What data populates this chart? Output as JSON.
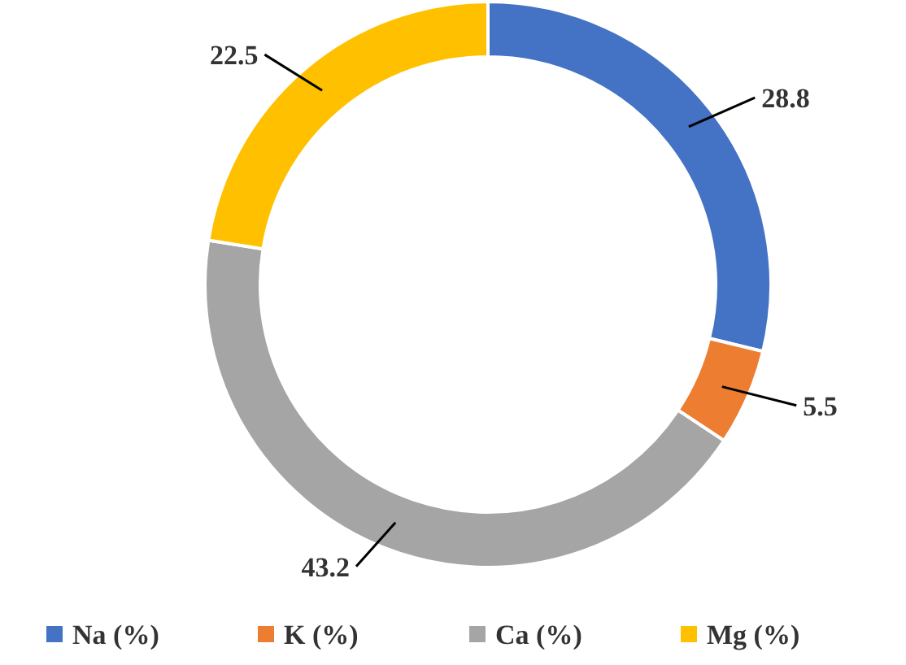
{
  "chart_data": {
    "type": "donut",
    "categories": [
      "Na (%)",
      "K (%)",
      "Ca (%)",
      "Mg (%)"
    ],
    "values": [
      28.8,
      5.5,
      43.2,
      22.5
    ],
    "colors": [
      "#4472c4",
      "#ed7d31",
      "#a5a5a5",
      "#ffc000"
    ],
    "data_labels": true,
    "legend": "bottom"
  }
}
